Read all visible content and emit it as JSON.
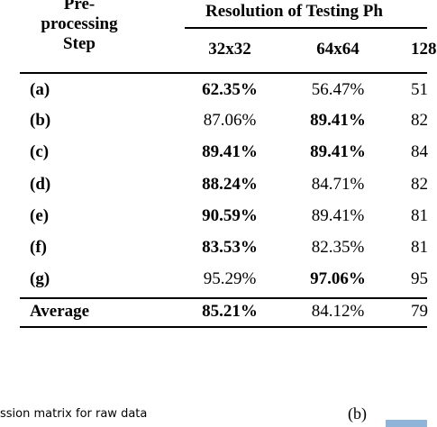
{
  "table": {
    "header": {
      "step": [
        "Pre-",
        "processing",
        "Step"
      ],
      "group": "Resolution of Testing Ph",
      "columns": [
        "32x32",
        "64x64",
        "128"
      ]
    },
    "rows": [
      [
        "(a)",
        "62.35%",
        "56.47%",
        "51"
      ],
      [
        "(b)",
        "87.06%",
        "89.41%",
        "82"
      ],
      [
        "(c)",
        "89.41%",
        "89.41%",
        "84"
      ],
      [
        "(d)",
        "88.24%",
        "84.71%",
        "82"
      ],
      [
        "(e)",
        "90.59%",
        "89.41%",
        "81"
      ],
      [
        "(f)",
        "83.53%",
        "82.35%",
        "81"
      ],
      [
        "(g)",
        "95.29%",
        "97.06%",
        "95"
      ],
      [
        "Average",
        "85.21%",
        "84.12%",
        "79"
      ]
    ],
    "bold": [
      [
        true,
        true,
        false,
        false
      ],
      [
        true,
        false,
        true,
        false
      ],
      [
        true,
        true,
        true,
        false
      ],
      [
        true,
        true,
        false,
        false
      ],
      [
        true,
        true,
        false,
        false
      ],
      [
        true,
        true,
        false,
        false
      ],
      [
        true,
        false,
        true,
        false
      ],
      [
        true,
        true,
        false,
        false
      ]
    ]
  },
  "caption": "ssion matrix for raw data",
  "subfigure": "(b)"
}
